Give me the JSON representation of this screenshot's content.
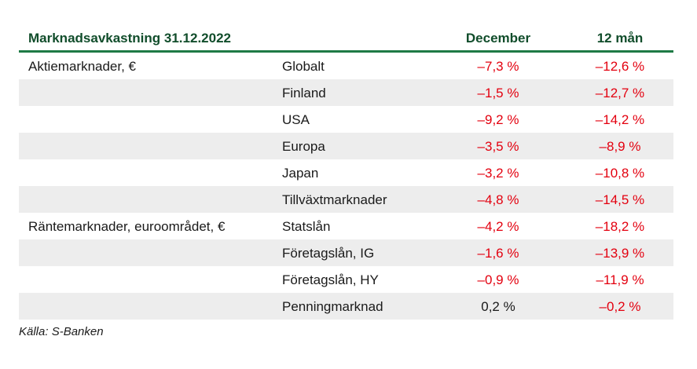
{
  "header": {
    "title": "Marknadsavkastning 31.12.2022",
    "col_december": "December",
    "col_12m": "12 mån"
  },
  "rows": [
    {
      "category": "Aktiemarknader, €",
      "sub": "Globalt",
      "december": "–7,3 %",
      "year": "–12,6 %",
      "dec_negative": true
    },
    {
      "category": "",
      "sub": "Finland",
      "december": "–1,5 %",
      "year": "–12,7 %",
      "dec_negative": true
    },
    {
      "category": "",
      "sub": "USA",
      "december": "–9,2 %",
      "year": "–14,2 %",
      "dec_negative": true
    },
    {
      "category": "",
      "sub": "Europa",
      "december": "–3,5 %",
      "year": "–8,9 %",
      "dec_negative": true
    },
    {
      "category": "",
      "sub": "Japan",
      "december": "–3,2 %",
      "year": "–10,8 %",
      "dec_negative": true
    },
    {
      "category": "",
      "sub": "Tillväxtmarknader",
      "december": "–4,8 %",
      "year": "–14,5 %",
      "dec_negative": true
    },
    {
      "category": "Räntemarknader, euroområdet, €",
      "sub": "Statslån",
      "december": "–4,2 %",
      "year": "–18,2 %",
      "dec_negative": true
    },
    {
      "category": "",
      "sub": "Företagslån, IG",
      "december": "–1,6 %",
      "year": "–13,9 %",
      "dec_negative": true
    },
    {
      "category": "",
      "sub": "Företagslån, HY",
      "december": "–0,9 %",
      "year": "–11,9 %",
      "dec_negative": true
    },
    {
      "category": "",
      "sub": "Penningmarknad",
      "december": "0,2 %",
      "year": "–0,2 %",
      "dec_negative": false
    }
  ],
  "source": "Källa: S-Banken",
  "colors": {
    "header_text": "#114d2b",
    "header_rule": "#1e7a45",
    "negative": "#e3000f",
    "row_shade": "#ededed"
  }
}
